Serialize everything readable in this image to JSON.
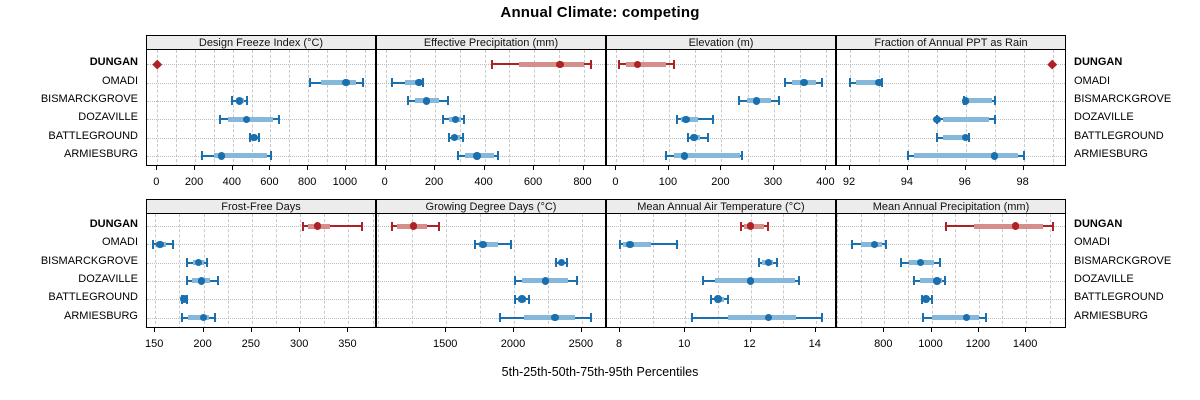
{
  "title": "Annual Climate: competing",
  "caption": "5th-25th-50th-75th-95th Percentiles",
  "colors": {
    "highlight": "#b02125",
    "highlight_band": "#d48e8c",
    "normal": "#1a6fae",
    "normal_band": "#85b8da",
    "strip_bg": "#ececec",
    "panel_border": "#000000",
    "grid": "#c9c9c9",
    "guide": "#bdbdbd"
  },
  "sites": [
    "DUNGAN",
    "OMADI",
    "BISMARCKGROVE",
    "DOZAVILLE",
    "BATTLEGROUND",
    "ARMIESBURG"
  ],
  "highlight_site": "DUNGAN",
  "chart_data": [
    {
      "type": "dot-whisker",
      "title": "Design Freeze Index (°C)",
      "row": 0,
      "col": 0,
      "xlim": [
        -55,
        1165
      ],
      "ticks": [
        0,
        200,
        400,
        600,
        800,
        1000
      ],
      "grid_step": 100,
      "series": [
        {
          "site": "DUNGAN",
          "p": [
            0,
            0,
            0,
            0,
            0
          ]
        },
        {
          "site": "OMADI",
          "p": [
            810,
            870,
            1000,
            1055,
            1090
          ]
        },
        {
          "site": "BISMARCKGROVE",
          "p": [
            395,
            415,
            435,
            460,
            475
          ]
        },
        {
          "site": "DOZAVILLE",
          "p": [
            333,
            375,
            474,
            612,
            645
          ]
        },
        {
          "site": "BATTLEGROUND",
          "p": [
            492,
            503,
            512,
            525,
            537
          ]
        },
        {
          "site": "ARMIESBURG",
          "p": [
            237,
            300,
            339,
            580,
            601
          ]
        }
      ]
    },
    {
      "type": "dot-whisker",
      "title": "Effective Precipitation (mm)",
      "row": 0,
      "col": 1,
      "xlim": [
        -35,
        895
      ],
      "ticks": [
        0,
        200,
        400,
        600,
        800
      ],
      "grid_step": 100,
      "series": [
        {
          "site": "DUNGAN",
          "p": [
            428,
            540,
            705,
            800,
            830
          ]
        },
        {
          "site": "OMADI",
          "p": [
            25,
            80,
            135,
            145,
            151
          ]
        },
        {
          "site": "BISMARCKGROVE",
          "p": [
            90,
            120,
            166,
            215,
            252
          ]
        },
        {
          "site": "DOZAVILLE",
          "p": [
            230,
            255,
            283,
            305,
            317
          ]
        },
        {
          "site": "BATTLEGROUND",
          "p": [
            256,
            265,
            279,
            300,
            313
          ]
        },
        {
          "site": "ARMIESBURG",
          "p": [
            293,
            320,
            369,
            440,
            456
          ]
        }
      ]
    },
    {
      "type": "dot-whisker",
      "title": "Elevation (m)",
      "row": 0,
      "col": 2,
      "xlim": [
        -18,
        420
      ],
      "ticks": [
        0,
        100,
        200,
        300,
        400
      ],
      "grid_step": 50,
      "series": [
        {
          "site": "DUNGAN",
          "p": [
            5,
            18,
            40,
            94,
            109
          ]
        },
        {
          "site": "OMADI",
          "p": [
            321,
            335,
            357,
            380,
            391
          ]
        },
        {
          "site": "BISMARCKGROVE",
          "p": [
            234,
            248,
            267,
            295,
            310
          ]
        },
        {
          "site": "DOZAVILLE",
          "p": [
            116,
            122,
            132,
            155,
            183
          ]
        },
        {
          "site": "BATTLEGROUND",
          "p": [
            137,
            142,
            148,
            160,
            175
          ]
        },
        {
          "site": "ARMIESBURG",
          "p": [
            95,
            110,
            130,
            235,
            240
          ]
        }
      ]
    },
    {
      "type": "dot-whisker",
      "title": "Fraction of Annual PPT as Rain",
      "row": 0,
      "col": 3,
      "xlim": [
        91.55,
        99.5
      ],
      "ticks": [
        92,
        94,
        96,
        98
      ],
      "grid_step": 1,
      "series": [
        {
          "site": "DUNGAN",
          "p": [
            99,
            99,
            99,
            99,
            99
          ]
        },
        {
          "site": "OMADI",
          "p": [
            92,
            92.2,
            93,
            93.05,
            93.1
          ]
        },
        {
          "site": "BISMARCKGROVE",
          "p": [
            95.95,
            96,
            96,
            96.9,
            97
          ]
        },
        {
          "site": "DOZAVILLE",
          "p": [
            95,
            95.2,
            95,
            96.8,
            97
          ]
        },
        {
          "site": "BATTLEGROUND",
          "p": [
            95,
            95.2,
            96,
            96.05,
            96.1
          ]
        },
        {
          "site": "ARMIESBURG",
          "p": [
            94,
            94.2,
            97,
            97.8,
            98
          ]
        }
      ]
    },
    {
      "type": "dot-whisker",
      "title": "Frost-Free Days",
      "row": 1,
      "col": 0,
      "xlim": [
        141.5,
        379.5
      ],
      "ticks": [
        150,
        200,
        250,
        300,
        350
      ],
      "grid_step": 25,
      "series": [
        {
          "site": "DUNGAN",
          "p": [
            303,
            308,
            318,
            331,
            364
          ]
        },
        {
          "site": "OMADI",
          "p": [
            148,
            151,
            155,
            161,
            168
          ]
        },
        {
          "site": "BISMARCKGROVE",
          "p": [
            183,
            189,
            195,
            200,
            204
          ]
        },
        {
          "site": "DOZAVILLE",
          "p": [
            183,
            188,
            198,
            207,
            215
          ]
        },
        {
          "site": "BATTLEGROUND",
          "p": [
            178,
            179,
            180,
            182,
            183
          ]
        },
        {
          "site": "ARMIESBURG",
          "p": [
            178,
            184,
            200,
            206,
            212
          ]
        }
      ]
    },
    {
      "type": "dot-whisker",
      "title": "Growing Degree Days (°C)",
      "row": 1,
      "col": 1,
      "xlim": [
        990,
        2685
      ],
      "ticks": [
        1500,
        2000,
        2500
      ],
      "grid_step": 250,
      "series": [
        {
          "site": "DUNGAN",
          "p": [
            1100,
            1140,
            1260,
            1360,
            1445
          ]
        },
        {
          "site": "OMADI",
          "p": [
            1715,
            1740,
            1770,
            1880,
            1975
          ]
        },
        {
          "site": "BISMARCKGROVE",
          "p": [
            2310,
            2330,
            2350,
            2370,
            2390
          ]
        },
        {
          "site": "DOZAVILLE",
          "p": [
            2010,
            2060,
            2230,
            2400,
            2465
          ]
        },
        {
          "site": "BATTLEGROUND",
          "p": [
            2010,
            2030,
            2060,
            2090,
            2110
          ]
        },
        {
          "site": "ARMIESBURG",
          "p": [
            1895,
            2070,
            2300,
            2450,
            2570
          ]
        }
      ]
    },
    {
      "type": "dot-whisker",
      "title": "Mean Annual Air Temperature (°C)",
      "row": 1,
      "col": 2,
      "xlim": [
        7.6,
        14.65
      ],
      "ticks": [
        8,
        10,
        12,
        14
      ],
      "grid_step": 1,
      "series": [
        {
          "site": "DUNGAN",
          "p": [
            11.7,
            11.8,
            12.0,
            12.4,
            12.55
          ]
        },
        {
          "site": "OMADI",
          "p": [
            8.0,
            8.1,
            8.3,
            8.95,
            9.75
          ]
        },
        {
          "site": "BISMARCKGROVE",
          "p": [
            12.25,
            12.35,
            12.55,
            12.7,
            12.8
          ]
        },
        {
          "site": "DOZAVILLE",
          "p": [
            10.55,
            10.9,
            12.0,
            13.35,
            13.5
          ]
        },
        {
          "site": "BATTLEGROUND",
          "p": [
            10.8,
            10.9,
            11.0,
            11.2,
            11.3
          ]
        },
        {
          "site": "ARMIESBURG",
          "p": [
            10.2,
            11.3,
            12.55,
            13.4,
            14.2
          ]
        }
      ]
    },
    {
      "type": "dot-whisker",
      "title": "Mean Annual Precipitation (mm)",
      "row": 1,
      "col": 3,
      "xlim": [
        600,
        1573
      ],
      "ticks": [
        800,
        1000,
        1200,
        1400
      ],
      "grid_step": 100,
      "series": [
        {
          "site": "DUNGAN",
          "p": [
            1063,
            1180,
            1355,
            1470,
            1513
          ]
        },
        {
          "site": "OMADI",
          "p": [
            662,
            700,
            758,
            790,
            807
          ]
        },
        {
          "site": "BISMARCKGROVE",
          "p": [
            870,
            905,
            953,
            1010,
            1035
          ]
        },
        {
          "site": "DOZAVILLE",
          "p": [
            927,
            950,
            1024,
            1045,
            1059
          ]
        },
        {
          "site": "BATTLEGROUND",
          "p": [
            958,
            965,
            976,
            990,
            1000
          ]
        },
        {
          "site": "ARMIESBURG",
          "p": [
            962,
            1000,
            1148,
            1200,
            1232
          ]
        }
      ]
    }
  ]
}
